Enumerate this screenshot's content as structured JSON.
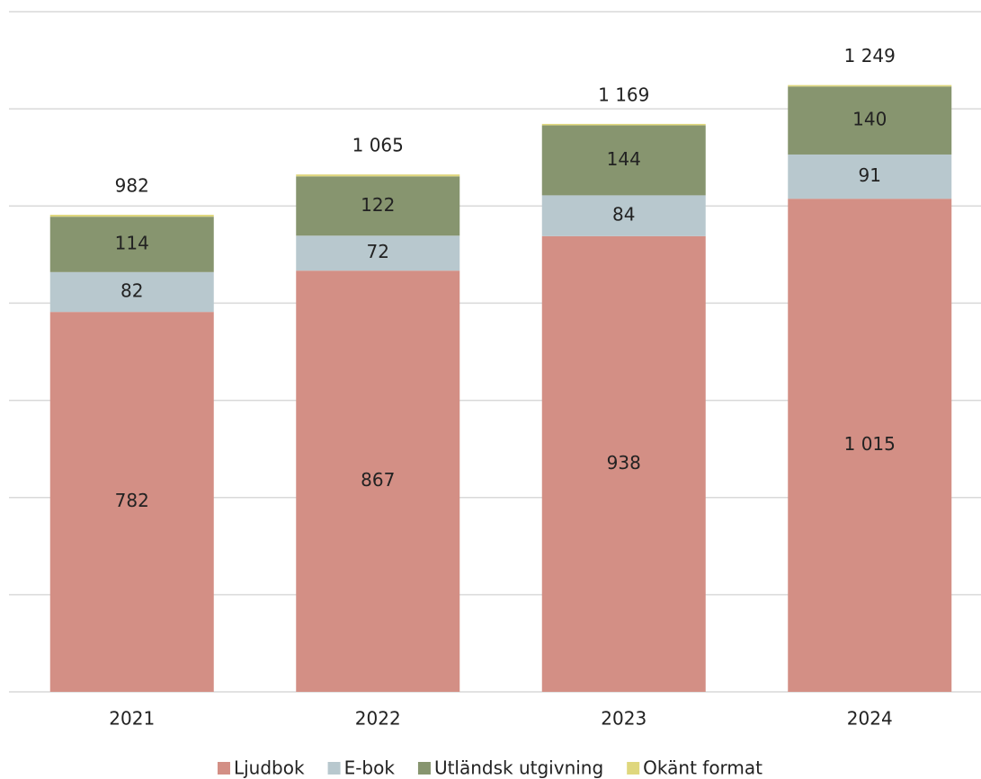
{
  "chart_data": {
    "type": "stacked_bar",
    "categories": [
      "2021",
      "2022",
      "2023",
      "2024"
    ],
    "series": [
      {
        "name": "Ljudbok",
        "color": "#d38f85",
        "values": [
          782,
          867,
          938,
          1015
        ],
        "value_labels": [
          "782",
          "867",
          "938",
          "1 015"
        ]
      },
      {
        "name": "E-bok",
        "color": "#b8c8ce",
        "values": [
          82,
          72,
          84,
          91
        ]
      },
      {
        "name": "Utländsk utgivning",
        "color": "#87956f",
        "values": [
          114,
          122,
          144,
          140
        ]
      },
      {
        "name": "Okänt format",
        "color": "#dfd77e",
        "values": [
          4,
          4,
          3,
          3
        ]
      }
    ],
    "totals": [
      982,
      1065,
      1169,
      1249
    ],
    "total_labels": [
      "982",
      "1 065",
      "1 169",
      "1 249"
    ],
    "ylim": [
      0,
      1400
    ],
    "yticks": [
      0,
      200,
      400,
      600,
      800,
      1000,
      1200,
      1400
    ],
    "grid": true,
    "legend": "bottom"
  }
}
